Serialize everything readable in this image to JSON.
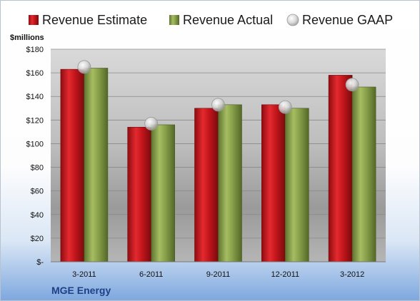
{
  "chart_data": {
    "type": "bar",
    "title": "",
    "ylabel": "$millions",
    "xlabel": "",
    "company": "MGE Energy",
    "categories": [
      "3-2011",
      "6-2011",
      "9-2011",
      "12-2011",
      "3-2012"
    ],
    "series": [
      {
        "name": "Revenue Estimate",
        "kind": "bar",
        "color": "#c4161c",
        "values": [
          163,
          114,
          130,
          133,
          158
        ]
      },
      {
        "name": "Revenue Actual",
        "kind": "bar",
        "color": "#88a04a",
        "values": [
          164,
          116,
          133,
          130,
          148
        ]
      },
      {
        "name": "Revenue GAAP",
        "kind": "marker",
        "color": "#c8c8c8",
        "values": [
          165,
          117,
          133,
          131,
          150
        ]
      }
    ],
    "ylim": [
      0,
      180
    ],
    "y_ticks": [
      0,
      20,
      40,
      60,
      80,
      100,
      120,
      140,
      160,
      180
    ],
    "y_tick_labels": [
      "$-",
      "$20",
      "$40",
      "$60",
      "$80",
      "$100",
      "$120",
      "$140",
      "$160",
      "$180"
    ],
    "grid": true,
    "legend_position": "top"
  }
}
